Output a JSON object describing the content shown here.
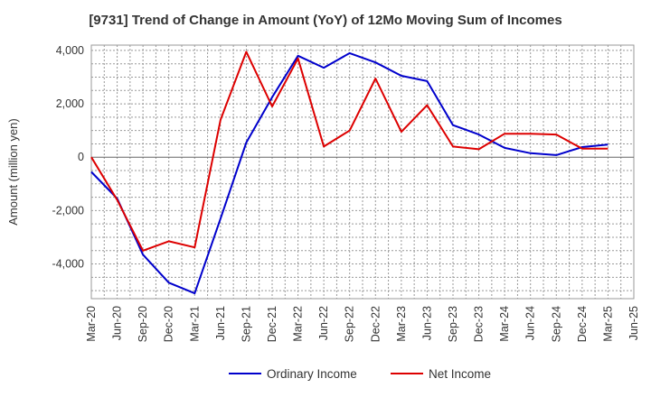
{
  "chart_data": {
    "type": "line",
    "title": "[9731]  Trend of Change in Amount (YoY) of 12Mo Moving Sum of Incomes",
    "ylabel": "Amount (million yen)",
    "xlabel": "",
    "ylim": [
      -5300,
      4200
    ],
    "yticks": [
      {
        "value": 4000,
        "label": "4,000"
      },
      {
        "value": 2000,
        "label": "2,000"
      },
      {
        "value": 0,
        "label": "0"
      },
      {
        "value": -2000,
        "label": "-2,000"
      },
      {
        "value": -4000,
        "label": "-4,000"
      }
    ],
    "categories": [
      "Mar-20",
      "Jun-20",
      "Sep-20",
      "Dec-20",
      "Mar-21",
      "Jun-21",
      "Sep-21",
      "Dec-21",
      "Mar-22",
      "Jun-22",
      "Sep-22",
      "Dec-22",
      "Mar-23",
      "Jun-23",
      "Sep-23",
      "Dec-23",
      "Mar-24",
      "Jun-24",
      "Sep-24",
      "Dec-24",
      "Mar-25",
      "Jun-25"
    ],
    "grid": true,
    "legend_position": "bottom",
    "series": [
      {
        "name": "Ordinary Income",
        "color": "#0000cc",
        "values": [
          -550,
          -1550,
          -3650,
          -4700,
          -5100,
          -2300,
          550,
          2250,
          3800,
          3350,
          3900,
          3550,
          3050,
          2850,
          1200,
          850,
          350,
          150,
          80,
          380,
          470,
          null
        ]
      },
      {
        "name": "Net Income",
        "color": "#dd0000",
        "values": [
          0,
          -1600,
          -3500,
          -3150,
          -3380,
          1400,
          3950,
          1900,
          3700,
          400,
          1000,
          2950,
          950,
          1950,
          400,
          300,
          880,
          880,
          850,
          320,
          320,
          null
        ]
      }
    ]
  }
}
